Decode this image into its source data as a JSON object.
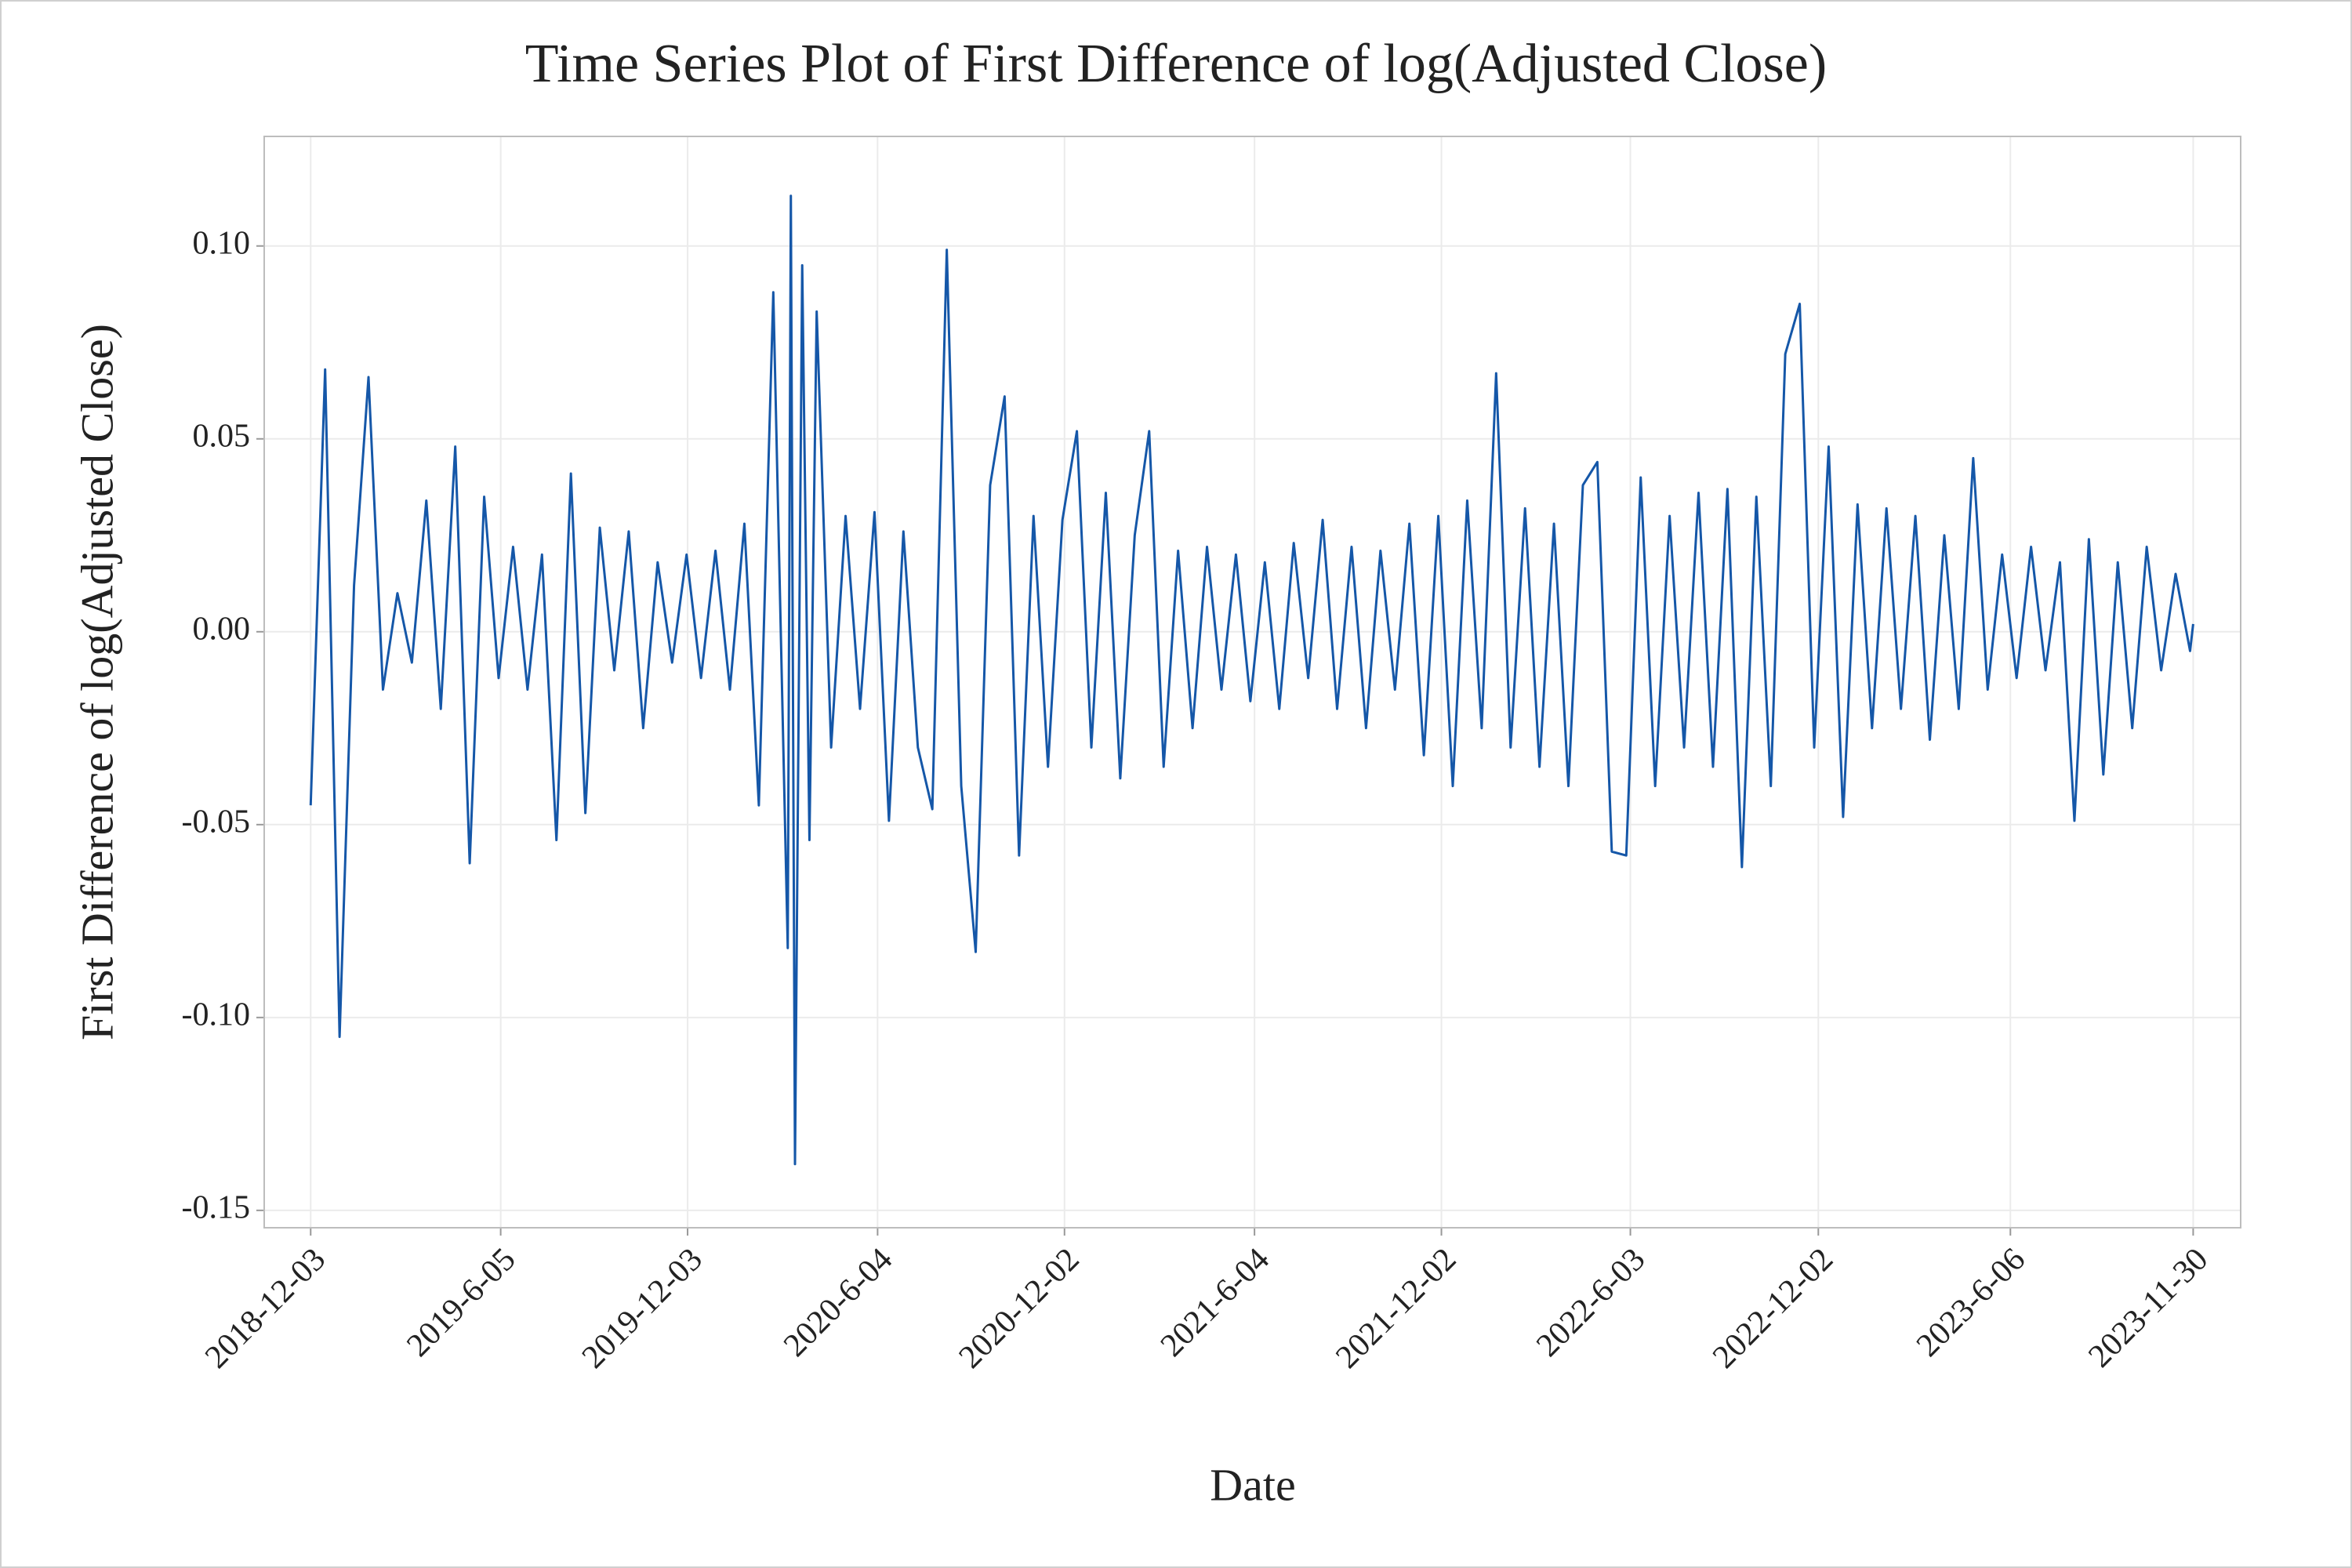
{
  "chart_data": {
    "type": "line",
    "title": "Time Series Plot of First Difference of log(Adjusted Close)",
    "x_label": "Date",
    "y_label": "First Difference of log(Adjusted Close)",
    "color": "#1557a8",
    "grid": true,
    "xlim": [
      "2018-10-19",
      "2024-01-15"
    ],
    "ylim": [
      -0.1545,
      0.1284
    ],
    "xticks": [
      "2018-12-03",
      {
        "value": "2019-06-05",
        "label": "2019-6-05"
      },
      "2019-12-03",
      {
        "value": "2020-06-04",
        "label": "2020-6-04"
      },
      "2020-12-02",
      {
        "value": "2021-06-04",
        "label": "2021-6-04"
      },
      "2021-12-02",
      {
        "value": "2022-06-03",
        "label": "2022-6-03"
      },
      "2022-12-02",
      {
        "value": "2023-06-06",
        "label": "2023-6-06"
      },
      "2023-11-30"
    ],
    "yticks": [
      {
        "value": 0.1,
        "label": "0.10"
      },
      0.05,
      {
        "value": 0,
        "label": "0.00"
      },
      -0.05,
      {
        "value": -0.1,
        "label": "-0.10"
      },
      -0.15
    ],
    "x": [
      "2018-12-03",
      "2018-12-17",
      "2018-12-31",
      "2019-01-14",
      "2019-01-28",
      "2019-02-11",
      "2019-02-25",
      "2019-03-11",
      "2019-03-25",
      "2019-04-08",
      "2019-04-22",
      "2019-05-06",
      "2019-05-20",
      "2019-06-03",
      "2019-06-17",
      "2019-07-01",
      "2019-07-15",
      "2019-07-29",
      "2019-08-12",
      "2019-08-26",
      "2019-09-09",
      "2019-09-23",
      "2019-10-07",
      "2019-10-21",
      "2019-11-04",
      "2019-11-18",
      "2019-12-02",
      "2019-12-16",
      "2019-12-30",
      "2020-01-13",
      "2020-01-27",
      "2020-02-10",
      "2020-02-24",
      "2020-03-09",
      "2020-03-12",
      "2020-03-16",
      "2020-03-23",
      "2020-03-30",
      "2020-04-06",
      "2020-04-20",
      "2020-05-04",
      "2020-05-18",
      "2020-06-01",
      "2020-06-15",
      "2020-06-29",
      "2020-07-13",
      "2020-07-27",
      "2020-08-10",
      "2020-08-24",
      "2020-09-07",
      "2020-09-21",
      "2020-10-05",
      "2020-10-19",
      "2020-11-02",
      "2020-11-16",
      "2020-11-30",
      "2020-12-14",
      "2020-12-28",
      "2021-01-11",
      "2021-01-25",
      "2021-02-08",
      "2021-02-22",
      "2021-03-08",
      "2021-03-22",
      "2021-04-05",
      "2021-04-19",
      "2021-05-03",
      "2021-05-17",
      "2021-05-31",
      "2021-06-14",
      "2021-06-28",
      "2021-07-12",
      "2021-07-26",
      "2021-08-09",
      "2021-08-23",
      "2021-09-06",
      "2021-09-20",
      "2021-10-04",
      "2021-10-18",
      "2021-11-01",
      "2021-11-15",
      "2021-11-29",
      "2021-12-13",
      "2021-12-27",
      "2022-01-10",
      "2022-01-24",
      "2022-02-07",
      "2022-02-21",
      "2022-03-07",
      "2022-03-21",
      "2022-04-04",
      "2022-04-18",
      "2022-05-02",
      "2022-05-16",
      "2022-05-30",
      "2022-06-13",
      "2022-06-27",
      "2022-07-11",
      "2022-07-25",
      "2022-08-08",
      "2022-08-22",
      "2022-09-05",
      "2022-09-19",
      "2022-10-03",
      "2022-10-17",
      "2022-10-31",
      "2022-11-14",
      "2022-11-28",
      "2022-12-12",
      "2022-12-26",
      "2023-01-09",
      "2023-01-23",
      "2023-02-06",
      "2023-02-20",
      "2023-03-06",
      "2023-03-20",
      "2023-04-03",
      "2023-04-17",
      "2023-05-01",
      "2023-05-15",
      "2023-05-29",
      "2023-06-12",
      "2023-06-26",
      "2023-07-10",
      "2023-07-24",
      "2023-08-07",
      "2023-08-21",
      "2023-09-04",
      "2023-09-18",
      "2023-10-02",
      "2023-10-16",
      "2023-10-30",
      "2023-11-13",
      "2023-11-27",
      "2023-11-30"
    ],
    "values": [
      -0.045,
      0.068,
      -0.105,
      0.012,
      0.066,
      -0.015,
      0.01,
      -0.008,
      0.034,
      -0.02,
      0.048,
      -0.06,
      0.035,
      -0.012,
      0.022,
      -0.015,
      0.02,
      -0.054,
      0.041,
      -0.047,
      0.027,
      -0.01,
      0.026,
      -0.025,
      0.018,
      -0.008,
      0.02,
      -0.012,
      0.021,
      -0.015,
      0.028,
      -0.045,
      0.088,
      -0.082,
      0.113,
      -0.138,
      0.095,
      -0.054,
      0.083,
      -0.03,
      0.03,
      -0.02,
      0.031,
      -0.049,
      0.026,
      -0.03,
      -0.046,
      0.099,
      -0.04,
      -0.083,
      0.038,
      0.061,
      -0.058,
      0.03,
      -0.035,
      0.029,
      0.052,
      -0.03,
      0.036,
      -0.038,
      0.025,
      0.052,
      -0.035,
      0.021,
      -0.025,
      0.022,
      -0.015,
      0.02,
      -0.018,
      0.018,
      -0.02,
      0.023,
      -0.012,
      0.029,
      -0.02,
      0.022,
      -0.025,
      0.021,
      -0.015,
      0.028,
      -0.032,
      0.03,
      -0.04,
      0.034,
      -0.025,
      0.067,
      -0.03,
      0.032,
      -0.035,
      0.028,
      -0.04,
      0.038,
      0.044,
      -0.057,
      -0.058,
      0.04,
      -0.04,
      0.03,
      -0.03,
      0.036,
      -0.035,
      0.037,
      -0.061,
      0.035,
      -0.04,
      0.072,
      0.085,
      -0.03,
      0.048,
      -0.048,
      0.033,
      -0.025,
      0.032,
      -0.02,
      0.03,
      -0.028,
      0.025,
      -0.02,
      0.045,
      -0.015,
      0.02,
      -0.012,
      0.022,
      -0.01,
      0.018,
      -0.049,
      0.024,
      -0.037,
      0.018,
      -0.025,
      0.022,
      -0.01,
      0.015,
      -0.005,
      0.002
    ]
  }
}
